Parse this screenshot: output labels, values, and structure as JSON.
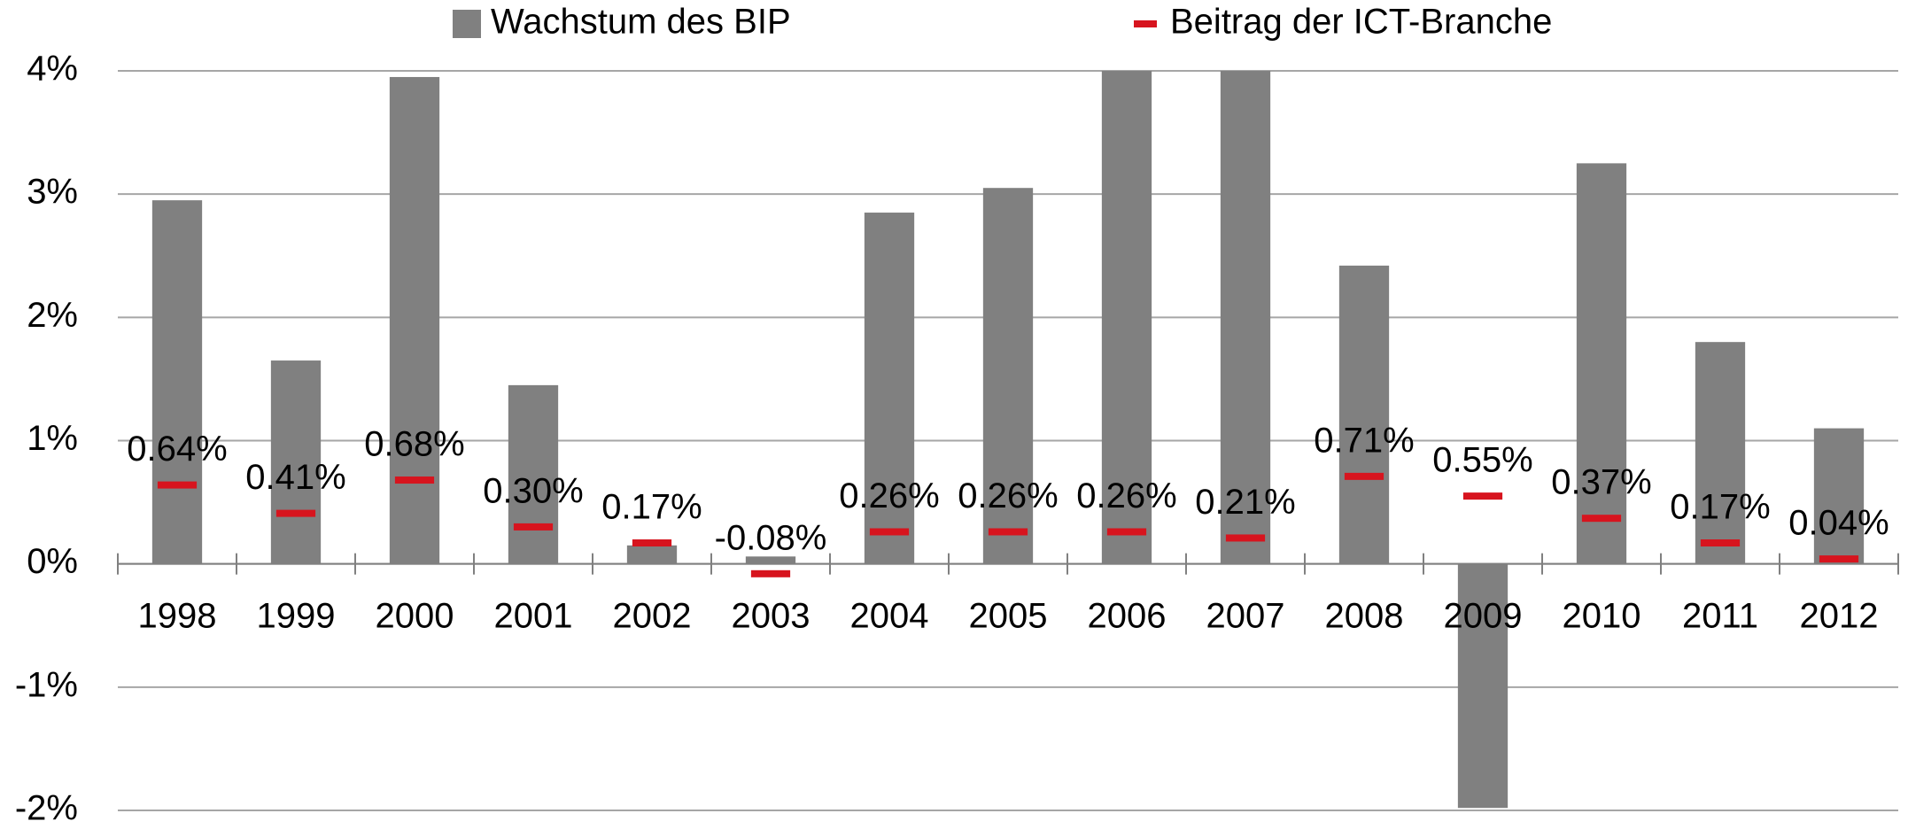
{
  "chart_data": {
    "type": "bar",
    "categories": [
      "1998",
      "1999",
      "2000",
      "2001",
      "2002",
      "2003",
      "2004",
      "2005",
      "2006",
      "2007",
      "2008",
      "2009",
      "2010",
      "2011",
      "2012"
    ],
    "series": [
      {
        "name": "Wachstum des BIP",
        "color": "#808080",
        "type": "bar",
        "values": [
          2.95,
          1.65,
          3.95,
          1.45,
          0.15,
          0.06,
          2.85,
          3.05,
          4.0,
          4.0,
          2.42,
          -1.98,
          3.25,
          1.8,
          1.1
        ]
      },
      {
        "name": "Beitrag der ICT-Branche",
        "color": "#d7141e",
        "type": "marker",
        "values": [
          0.64,
          0.41,
          0.68,
          0.3,
          0.17,
          -0.08,
          0.26,
          0.26,
          0.26,
          0.21,
          0.71,
          0.55,
          0.37,
          0.17,
          0.04
        ],
        "value_labels": [
          "0.64%",
          "0.41%",
          "0.68%",
          "0.30%",
          "0.17%",
          "-0.08%",
          "0.26%",
          "0.26%",
          "0.26%",
          "0.21%",
          "0.71%",
          "0.55%",
          "0.37%",
          "0.17%",
          "0.04%"
        ]
      }
    ],
    "ylim": [
      -2,
      4
    ],
    "yticks": [
      {
        "value": -2,
        "label": "-2%"
      },
      {
        "value": -1,
        "label": "-1%"
      },
      {
        "value": 0,
        "label": "0%"
      },
      {
        "value": 1,
        "label": "1%"
      },
      {
        "value": 2,
        "label": "2%"
      },
      {
        "value": 3,
        "label": "3%"
      },
      {
        "value": 4,
        "label": "4%"
      }
    ],
    "grid": true,
    "legend": "top"
  }
}
